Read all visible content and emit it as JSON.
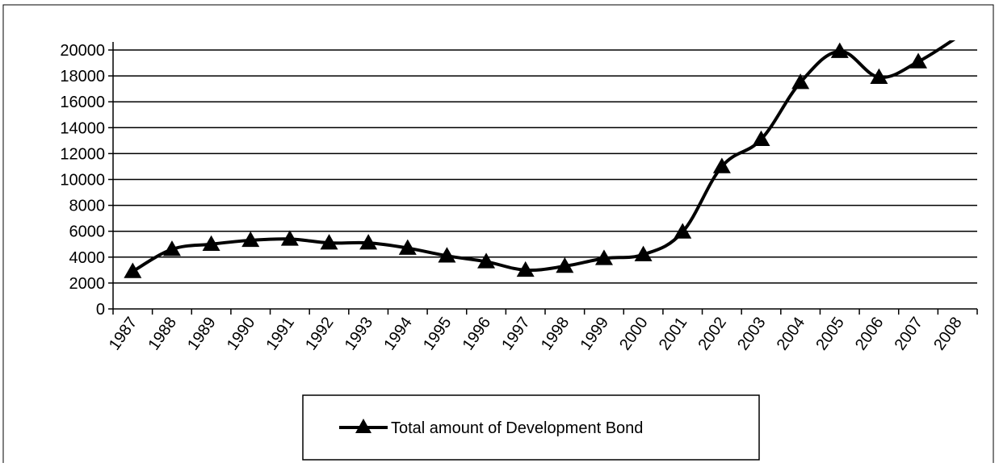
{
  "chart_data": {
    "type": "line",
    "title": "",
    "xlabel": "",
    "ylabel": "",
    "ylim": [
      0,
      20000
    ],
    "y_ticks": [
      "0",
      "2000",
      "4000",
      "6000",
      "8000",
      "10000",
      "12000",
      "14000",
      "16000",
      "18000",
      "20000"
    ],
    "categories": [
      "1987",
      "1988",
      "1989",
      "1990",
      "1991",
      "1992",
      "1993",
      "1994",
      "1995",
      "1996",
      "1997",
      "1998",
      "1999",
      "2000",
      "2001",
      "2002",
      "2003",
      "2004",
      "2005",
      "2006",
      "2007",
      "2008"
    ],
    "grid": true,
    "legend_position": "bottom",
    "series": [
      {
        "name": "Total amount of Development Bond",
        "values": [
          2900,
          4600,
          5000,
          5300,
          5400,
          5100,
          5100,
          4700,
          4100,
          3650,
          3000,
          3300,
          3900,
          4200,
          5950,
          11000,
          13100,
          17500,
          19900,
          17900,
          19100,
          21000
        ],
        "color": "#000000",
        "marker": "triangle"
      }
    ]
  }
}
